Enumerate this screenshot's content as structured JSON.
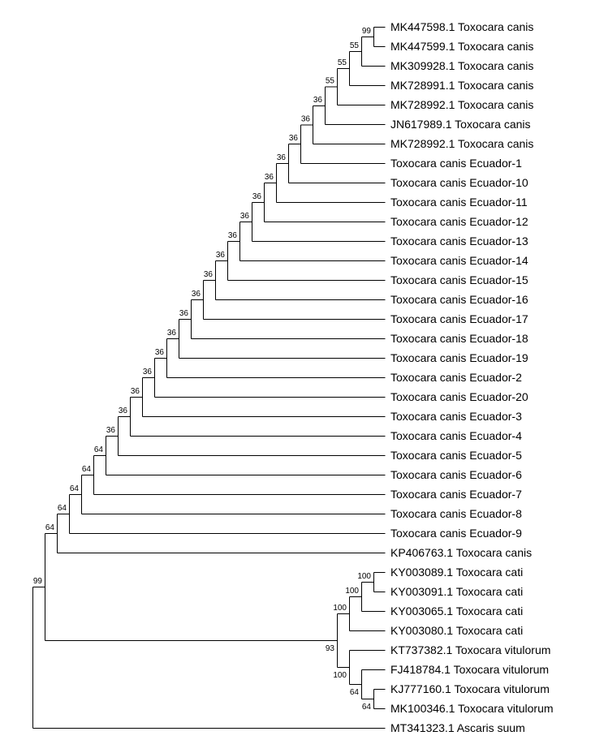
{
  "tree": {
    "taxa": [
      "MK447598.1 Toxocara canis",
      "MK447599.1 Toxocara canis",
      "MK309928.1 Toxocara canis",
      "MK728991.1 Toxocara canis",
      "MK728992.1 Toxocara canis",
      "JN617989.1 Toxocara canis",
      "MK728992.1 Toxocara canis",
      "Toxocara canis Ecuador-1",
      "Toxocara canis Ecuador-10",
      "Toxocara canis Ecuador-11",
      "Toxocara canis Ecuador-12",
      "Toxocara canis Ecuador-13",
      "Toxocara canis Ecuador-14",
      "Toxocara canis Ecuador-15",
      "Toxocara canis Ecuador-16",
      "Toxocara canis Ecuador-17",
      "Toxocara canis Ecuador-18",
      "Toxocara canis Ecuador-19",
      "Toxocara canis Ecuador-2",
      "Toxocara canis Ecuador-20",
      "Toxocara canis Ecuador-3",
      "Toxocara canis Ecuador-4",
      "Toxocara canis Ecuador-5",
      "Toxocara canis Ecuador-6",
      "Toxocara canis Ecuador-7",
      "Toxocara canis Ecuador-8",
      "Toxocara canis Ecuador-9",
      "KP406763.1 Toxocara canis",
      "KY003089.1 Toxocara cati",
      "KY003091.1 Toxocara cati",
      "KY003065.1 Toxocara cati",
      "KY003080.1 Toxocara cati",
      "KT737382.1 Toxocara vitulorum",
      "FJ418784.1 Toxocara vitulorum",
      "KJ777160.1 Toxocara vitulorum",
      "MK100346.1 Toxocara vitulorum",
      "MT341323.1 Ascaris suum"
    ],
    "support_values": [
      "99",
      "55",
      "55",
      "55",
      "36",
      "36",
      "36",
      "36",
      "36",
      "36",
      "36",
      "36",
      "36",
      "36",
      "36",
      "36",
      "36",
      "36",
      "36",
      "36",
      "36",
      "36",
      "64",
      "99",
      "100",
      "100",
      "100",
      "93",
      "100",
      "64",
      "64"
    ]
  }
}
